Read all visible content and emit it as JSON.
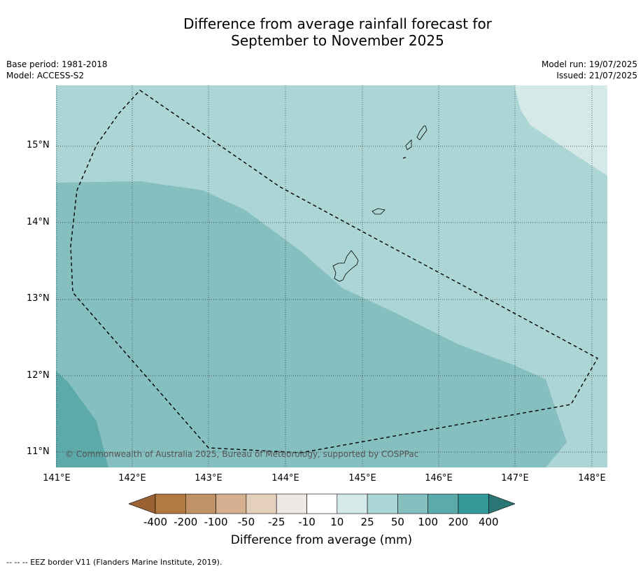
{
  "title_line1": "Difference from average rainfall forecast for",
  "title_line2": "September to November 2025",
  "meta": {
    "base_period": "Base period: 1981-2018",
    "model": "Model: ACCESS-S2",
    "model_run": "Model run: 19/07/2025",
    "issued": "Issued: 21/07/2025"
  },
  "lat_ticks": [
    "15°N",
    "14°N",
    "13°N",
    "12°N",
    "11°N"
  ],
  "lon_ticks": [
    "141°E",
    "142°E",
    "143°E",
    "144°E",
    "145°E",
    "146°E",
    "147°E",
    "148°E"
  ],
  "copyright": "© Commonwealth of Australia 2025, Bureau of Meteorology, supported by COSPPac",
  "colorbar": {
    "labels": [
      "-400",
      "-200",
      "-100",
      "-50",
      "-25",
      "-10",
      "10",
      "25",
      "50",
      "100",
      "200",
      "400"
    ],
    "colors": [
      "#9a6233",
      "#b07a40",
      "#c19266",
      "#d4b091",
      "#e5d0bd",
      "#eee9e5",
      "#ffffff",
      "#d4e9e8",
      "#acd5d5",
      "#86bfbf",
      "#5daaaa",
      "#359999",
      "#2a7675"
    ],
    "title": "Difference from average (mm)"
  },
  "footer": "--  --  -- EEZ border V11 (Flanders Marine Institute, 2019).",
  "map_colors": {
    "c25_50": "#acd5d5",
    "c50_100": "#86bfbf",
    "c100_200": "#5daaaa",
    "c10_25": "#d4e9e8"
  }
}
